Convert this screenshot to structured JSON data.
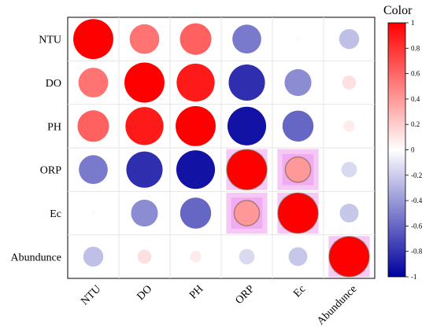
{
  "chart_data": {
    "type": "heatmap",
    "variant": "correlation-circles",
    "rows": [
      "NTU",
      "DO",
      "PH",
      "ORP",
      "Ec",
      "Abundunce"
    ],
    "columns": [
      "NTU",
      "DO",
      "PH",
      "ORP",
      "Ec",
      "Abundunce"
    ],
    "matrix": [
      [
        1.0,
        0.55,
        0.62,
        -0.52,
        0.02,
        -0.25
      ],
      [
        0.55,
        1.0,
        0.9,
        -0.82,
        -0.45,
        0.12
      ],
      [
        0.62,
        0.9,
        1.0,
        -0.93,
        -0.6,
        0.08
      ],
      [
        -0.52,
        -0.82,
        -0.93,
        1.0,
        0.4,
        -0.15
      ],
      [
        0.02,
        -0.45,
        -0.6,
        0.4,
        1.0,
        -0.22
      ],
      [
        -0.25,
        0.12,
        0.08,
        -0.15,
        -0.22,
        1.0
      ]
    ],
    "legend": {
      "title": "Color",
      "range": [
        -1,
        1
      ],
      "ticks": [
        "1",
        "0.8",
        "0.6",
        "0.4",
        "0.2",
        "0",
        "-0.2",
        "-0.4",
        "-0.6",
        "-0.8",
        "-1"
      ],
      "colors": {
        "low": "#00009e",
        "mid": "#ffffff",
        "high": "#ff0000"
      }
    },
    "highlighted_cells": [
      [
        3,
        3
      ],
      [
        3,
        4
      ],
      [
        4,
        3
      ],
      [
        4,
        4
      ],
      [
        5,
        5
      ]
    ],
    "grid": true
  }
}
